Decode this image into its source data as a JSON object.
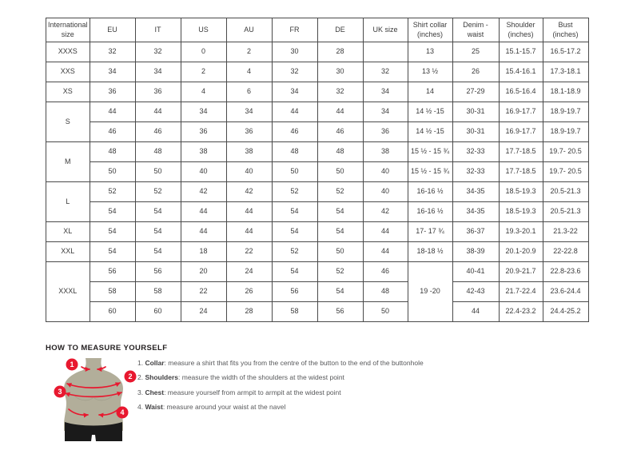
{
  "colors": {
    "accent_red": "#e8182f",
    "torso_tan": "#b2ae9a",
    "shorts_black": "#1a1a1a",
    "table_border": "#4a4a4a",
    "text": "#3b3b3b"
  },
  "table": {
    "headers": [
      "International size",
      "EU",
      "IT",
      "US",
      "AU",
      "FR",
      "DE",
      "UK size",
      "Shirt collar (inches)",
      "Denim - waist",
      "Shoulder (inches)",
      "Bust (inches)"
    ],
    "rows": [
      [
        {
          "v": "XXXS",
          "h": true
        },
        {
          "v": "32"
        },
        {
          "v": "32"
        },
        {
          "v": "0"
        },
        {
          "v": "2"
        },
        {
          "v": "30"
        },
        {
          "v": "28"
        },
        {
          "v": ""
        },
        {
          "v": "13"
        },
        {
          "v": "25"
        },
        {
          "v": "15.1-15.7"
        },
        {
          "v": "16.5-17.2"
        }
      ],
      [
        {
          "v": "XXS",
          "h": true
        },
        {
          "v": "34"
        },
        {
          "v": "34"
        },
        {
          "v": "2"
        },
        {
          "v": "4"
        },
        {
          "v": "32"
        },
        {
          "v": "30"
        },
        {
          "v": "32"
        },
        {
          "v": "13 ½"
        },
        {
          "v": "26"
        },
        {
          "v": "15.4-16.1"
        },
        {
          "v": "17.3-18.1"
        }
      ],
      [
        {
          "v": "XS",
          "h": true
        },
        {
          "v": "36"
        },
        {
          "v": "36"
        },
        {
          "v": "4"
        },
        {
          "v": "6"
        },
        {
          "v": "34"
        },
        {
          "v": "32"
        },
        {
          "v": "34"
        },
        {
          "v": "14"
        },
        {
          "v": "27-29"
        },
        {
          "v": "16.5-16.4"
        },
        {
          "v": "18.1-18.9"
        }
      ],
      [
        {
          "v": "S",
          "h": true,
          "rs": 2
        },
        {
          "v": "44"
        },
        {
          "v": "44"
        },
        {
          "v": "34"
        },
        {
          "v": "34"
        },
        {
          "v": "44"
        },
        {
          "v": "44"
        },
        {
          "v": "34"
        },
        {
          "v": "14 ½ -15"
        },
        {
          "v": "30-31"
        },
        {
          "v": "16.9-17.7"
        },
        {
          "v": "18.9-19.7"
        }
      ],
      [
        {
          "v": "46"
        },
        {
          "v": "46"
        },
        {
          "v": "36"
        },
        {
          "v": "36"
        },
        {
          "v": "46"
        },
        {
          "v": "46"
        },
        {
          "v": "36"
        },
        {
          "v": "14 ½ -15"
        },
        {
          "v": "30-31"
        },
        {
          "v": "16.9-17.7"
        },
        {
          "v": "18.9-19.7"
        }
      ],
      [
        {
          "v": "M",
          "h": true,
          "rs": 2
        },
        {
          "v": "48"
        },
        {
          "v": "48"
        },
        {
          "v": "38"
        },
        {
          "v": "38"
        },
        {
          "v": "48"
        },
        {
          "v": "48"
        },
        {
          "v": "38"
        },
        {
          "v": "15 ½ - 15 ¾"
        },
        {
          "v": "32-33"
        },
        {
          "v": "17.7-18.5"
        },
        {
          "v": "19.7- 20.5"
        }
      ],
      [
        {
          "v": "50"
        },
        {
          "v": "50"
        },
        {
          "v": "40"
        },
        {
          "v": "40"
        },
        {
          "v": "50"
        },
        {
          "v": "50"
        },
        {
          "v": "40"
        },
        {
          "v": "15 ½ - 15 ¾"
        },
        {
          "v": "32-33"
        },
        {
          "v": "17.7-18.5"
        },
        {
          "v": "19.7- 20.5"
        }
      ],
      [
        {
          "v": "L",
          "h": true,
          "rs": 2
        },
        {
          "v": "52"
        },
        {
          "v": "52"
        },
        {
          "v": "42"
        },
        {
          "v": "42"
        },
        {
          "v": "52"
        },
        {
          "v": "52"
        },
        {
          "v": "40"
        },
        {
          "v": "16-16 ½"
        },
        {
          "v": "34-35"
        },
        {
          "v": "18.5-19.3"
        },
        {
          "v": "20.5-21.3"
        }
      ],
      [
        {
          "v": "54"
        },
        {
          "v": "54"
        },
        {
          "v": "44"
        },
        {
          "v": "44"
        },
        {
          "v": "54"
        },
        {
          "v": "54"
        },
        {
          "v": "42"
        },
        {
          "v": "16-16 ½"
        },
        {
          "v": "34-35"
        },
        {
          "v": "18.5-19.3"
        },
        {
          "v": "20.5-21.3"
        }
      ],
      [
        {
          "v": "XL",
          "h": true
        },
        {
          "v": "54"
        },
        {
          "v": "54"
        },
        {
          "v": "44"
        },
        {
          "v": "44"
        },
        {
          "v": "54"
        },
        {
          "v": "54"
        },
        {
          "v": "44"
        },
        {
          "v": "17- 17 ¾"
        },
        {
          "v": "36-37"
        },
        {
          "v": "19.3-20.1"
        },
        {
          "v": "21.3-22"
        }
      ],
      [
        {
          "v": "XXL",
          "h": true
        },
        {
          "v": "54"
        },
        {
          "v": "54"
        },
        {
          "v": "18"
        },
        {
          "v": "22"
        },
        {
          "v": "52"
        },
        {
          "v": "50"
        },
        {
          "v": "44"
        },
        {
          "v": "18-18 ½"
        },
        {
          "v": "38-39"
        },
        {
          "v": "20.1-20.9"
        },
        {
          "v": "22-22.8"
        }
      ],
      [
        {
          "v": "XXXL",
          "h": true,
          "rs": 3
        },
        {
          "v": "56"
        },
        {
          "v": "56"
        },
        {
          "v": "20"
        },
        {
          "v": "24"
        },
        {
          "v": "54"
        },
        {
          "v": "52"
        },
        {
          "v": "46"
        },
        {
          "v": "19 -20",
          "rs": 3
        },
        {
          "v": "40-41"
        },
        {
          "v": "20.9-21.7"
        },
        {
          "v": "22.8-23.6"
        }
      ],
      [
        {
          "v": "58"
        },
        {
          "v": "58"
        },
        {
          "v": "22"
        },
        {
          "v": "26"
        },
        {
          "v": "56"
        },
        {
          "v": "54"
        },
        {
          "v": "48"
        },
        {
          "v": "42-43"
        },
        {
          "v": "21.7-22.4"
        },
        {
          "v": "23.6-24.4"
        }
      ],
      [
        {
          "v": "60"
        },
        {
          "v": "60"
        },
        {
          "v": "24"
        },
        {
          "v": "28"
        },
        {
          "v": "58"
        },
        {
          "v": "56"
        },
        {
          "v": "50"
        },
        {
          "v": "44"
        },
        {
          "v": "22.4-23.2"
        },
        {
          "v": "24.4-25.2"
        }
      ]
    ]
  },
  "how_to": {
    "title": "HOW TO MEASURE YOURSELF",
    "items": [
      {
        "num": "1.",
        "label": "Collar",
        "text": ": measure a shirt that fits you from the centre of the button to the end of the buttonhole"
      },
      {
        "num": "2.",
        "label": "Shoulders",
        "text": ": measure the width of the shoulders at the widest point"
      },
      {
        "num": "3.",
        "label": "Chest",
        "text": ": measure yourself from armpit to armpit at the widest point"
      },
      {
        "num": "4.",
        "label": "Waist",
        "text": ": measure around your waist at the navel"
      }
    ]
  },
  "figure": {
    "badges": [
      "1",
      "2",
      "3",
      "4"
    ]
  }
}
